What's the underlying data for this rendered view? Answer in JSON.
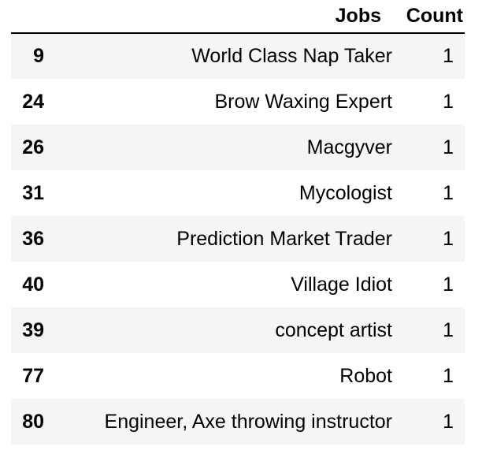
{
  "table": {
    "columns": {
      "jobs": "Jobs",
      "count": "Count"
    },
    "rows": [
      {
        "index": "9",
        "jobs": "World Class Nap Taker",
        "count": "1"
      },
      {
        "index": "24",
        "jobs": "Brow Waxing Expert",
        "count": "1"
      },
      {
        "index": "26",
        "jobs": "Macgyver",
        "count": "1"
      },
      {
        "index": "31",
        "jobs": "Mycologist",
        "count": "1"
      },
      {
        "index": "36",
        "jobs": "Prediction Market Trader",
        "count": "1"
      },
      {
        "index": "40",
        "jobs": "Village Idiot",
        "count": "1"
      },
      {
        "index": "39",
        "jobs": "concept artist",
        "count": "1"
      },
      {
        "index": "77",
        "jobs": "Robot",
        "count": "1"
      },
      {
        "index": "80",
        "jobs": "Engineer, Axe throwing instructor",
        "count": "1"
      }
    ]
  }
}
